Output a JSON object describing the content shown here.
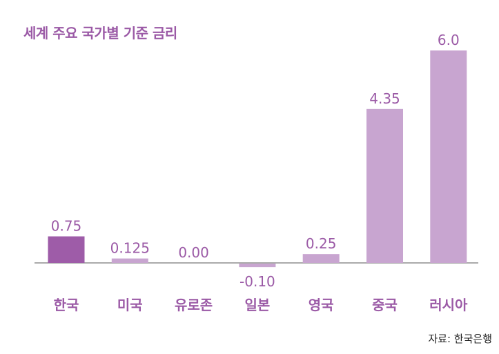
{
  "chart_data": {
    "type": "bar",
    "title": "세계 주요 국가별 기준 금리",
    "categories": [
      "한국",
      "미국",
      "유로존",
      "일본",
      "영국",
      "중국",
      "러시아"
    ],
    "values": [
      0.75,
      0.125,
      0.0,
      -0.1,
      0.25,
      4.35,
      6.0
    ],
    "value_labels": [
      "0.75",
      "0.125",
      "0.00",
      "-0.10",
      "0.25",
      "4.35",
      "6.0"
    ],
    "xlabel": "",
    "ylabel": "",
    "ylim": [
      -0.2,
      6.2
    ],
    "grid": false,
    "highlight_index": 0,
    "colors": {
      "highlight": "#9e5ca8",
      "bar": "#c8a5d0",
      "axis": "#555555",
      "value_label": "#9b5aa6",
      "category_label": "#9b5aa6",
      "title": "#9b5aa6"
    }
  },
  "source": "자료: 한국은행"
}
